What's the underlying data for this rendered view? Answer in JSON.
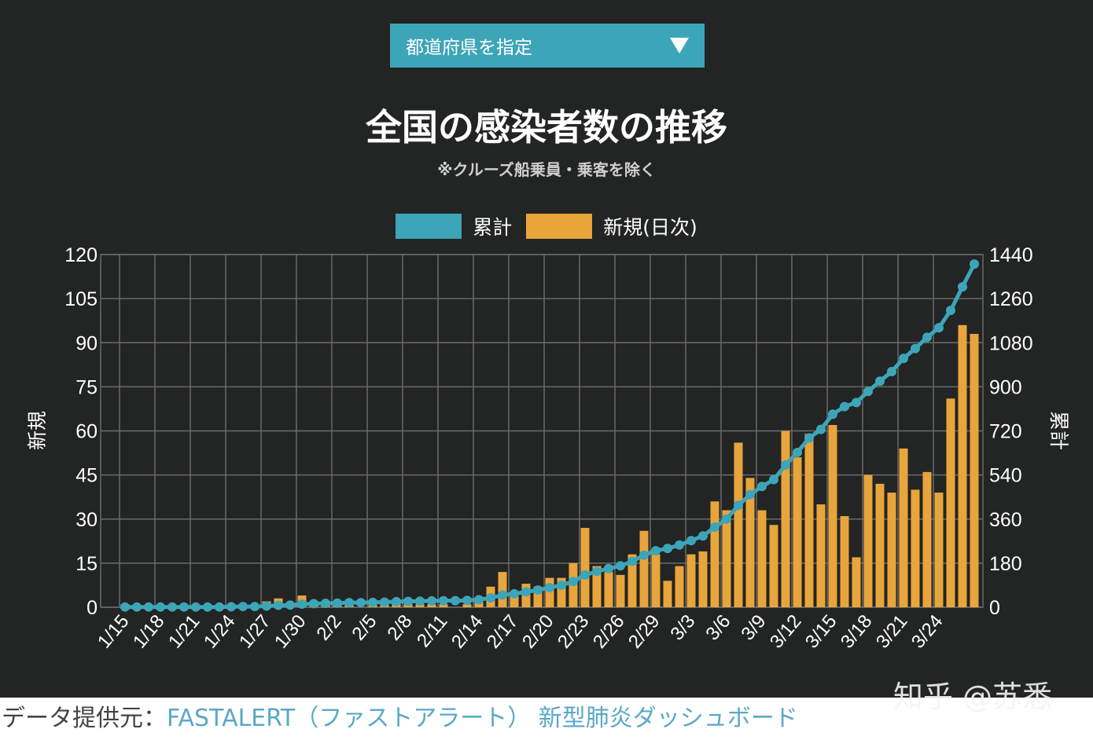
{
  "selector": {
    "label": "都道府県を指定"
  },
  "header": {
    "title": "全国の感染者数の推移",
    "subtitle": "※クルーズ船乗員・乗客を除く"
  },
  "legend": {
    "cumulative_label": "累計",
    "daily_label": "新規(日次)"
  },
  "footer": {
    "label": "データ提供元：",
    "source": "FASTALERT（ファストアラート） 新型肺炎ダッシュボード"
  },
  "watermark": {
    "text": "知乎 @苏悉"
  },
  "colors": {
    "cumulative": "#3da5b8",
    "daily": "#e8a53b",
    "background": "#232424",
    "grid": "#6a6a6a"
  },
  "chart_data": {
    "type": "bar",
    "title": "全国の感染者数の推移",
    "subtitle": "※クルーズ船乗員・乗客を除く",
    "ylabel": "新規",
    "y2label": "累計",
    "ylim": [
      0,
      120
    ],
    "y2lim": [
      0,
      1440
    ],
    "yticks": [
      "0",
      "15",
      "30",
      "45",
      "60",
      "75",
      "90",
      "105",
      "120"
    ],
    "y2ticks": [
      "0",
      "180",
      "360",
      "540",
      "720",
      "900",
      "1080",
      "1260",
      "1440"
    ],
    "xtick_labels": [
      "1/15",
      "1/18",
      "1/21",
      "1/24",
      "1/27",
      "1/30",
      "2/2",
      "2/5",
      "2/8",
      "2/11",
      "2/14",
      "2/17",
      "2/20",
      "2/23",
      "2/26",
      "2/29",
      "3/3",
      "3/6",
      "3/9",
      "3/12",
      "3/15",
      "3/18",
      "3/21",
      "3/24"
    ],
    "grid": true,
    "legend_position": "top-center",
    "series": [
      {
        "name": "新規(日次)",
        "type": "bar",
        "axis": "left",
        "values": [
          1,
          0,
          0,
          0,
          0,
          0,
          0,
          0,
          0,
          1,
          1,
          0,
          2,
          3,
          1,
          4,
          2,
          1,
          1,
          2,
          0,
          1,
          1,
          2,
          1,
          1,
          1,
          1,
          0,
          1,
          3,
          7,
          12,
          5,
          8,
          7,
          10,
          10,
          15,
          27,
          14,
          12,
          11,
          18,
          26,
          18,
          9,
          14,
          18,
          19,
          36,
          33,
          56,
          44,
          33,
          28,
          60,
          51,
          59,
          35,
          62,
          31,
          17,
          45,
          42,
          39,
          54,
          40,
          46,
          39,
          71,
          96,
          93
        ]
      },
      {
        "name": "累計",
        "type": "line",
        "axis": "right",
        "values": [
          1,
          1,
          1,
          1,
          1,
          1,
          1,
          1,
          1,
          2,
          3,
          3,
          5,
          8,
          9,
          13,
          15,
          16,
          17,
          19,
          19,
          20,
          21,
          23,
          24,
          25,
          26,
          27,
          27,
          28,
          31,
          38,
          50,
          55,
          63,
          70,
          80,
          90,
          105,
          132,
          146,
          158,
          169,
          187,
          213,
          231,
          240,
          254,
          272,
          291,
          327,
          360,
          416,
          460,
          493,
          521,
          581,
          632,
          691,
          726,
          788,
          819,
          836,
          881,
          923,
          962,
          1016,
          1056,
          1102,
          1141,
          1212,
          1308,
          1401
        ]
      }
    ]
  }
}
